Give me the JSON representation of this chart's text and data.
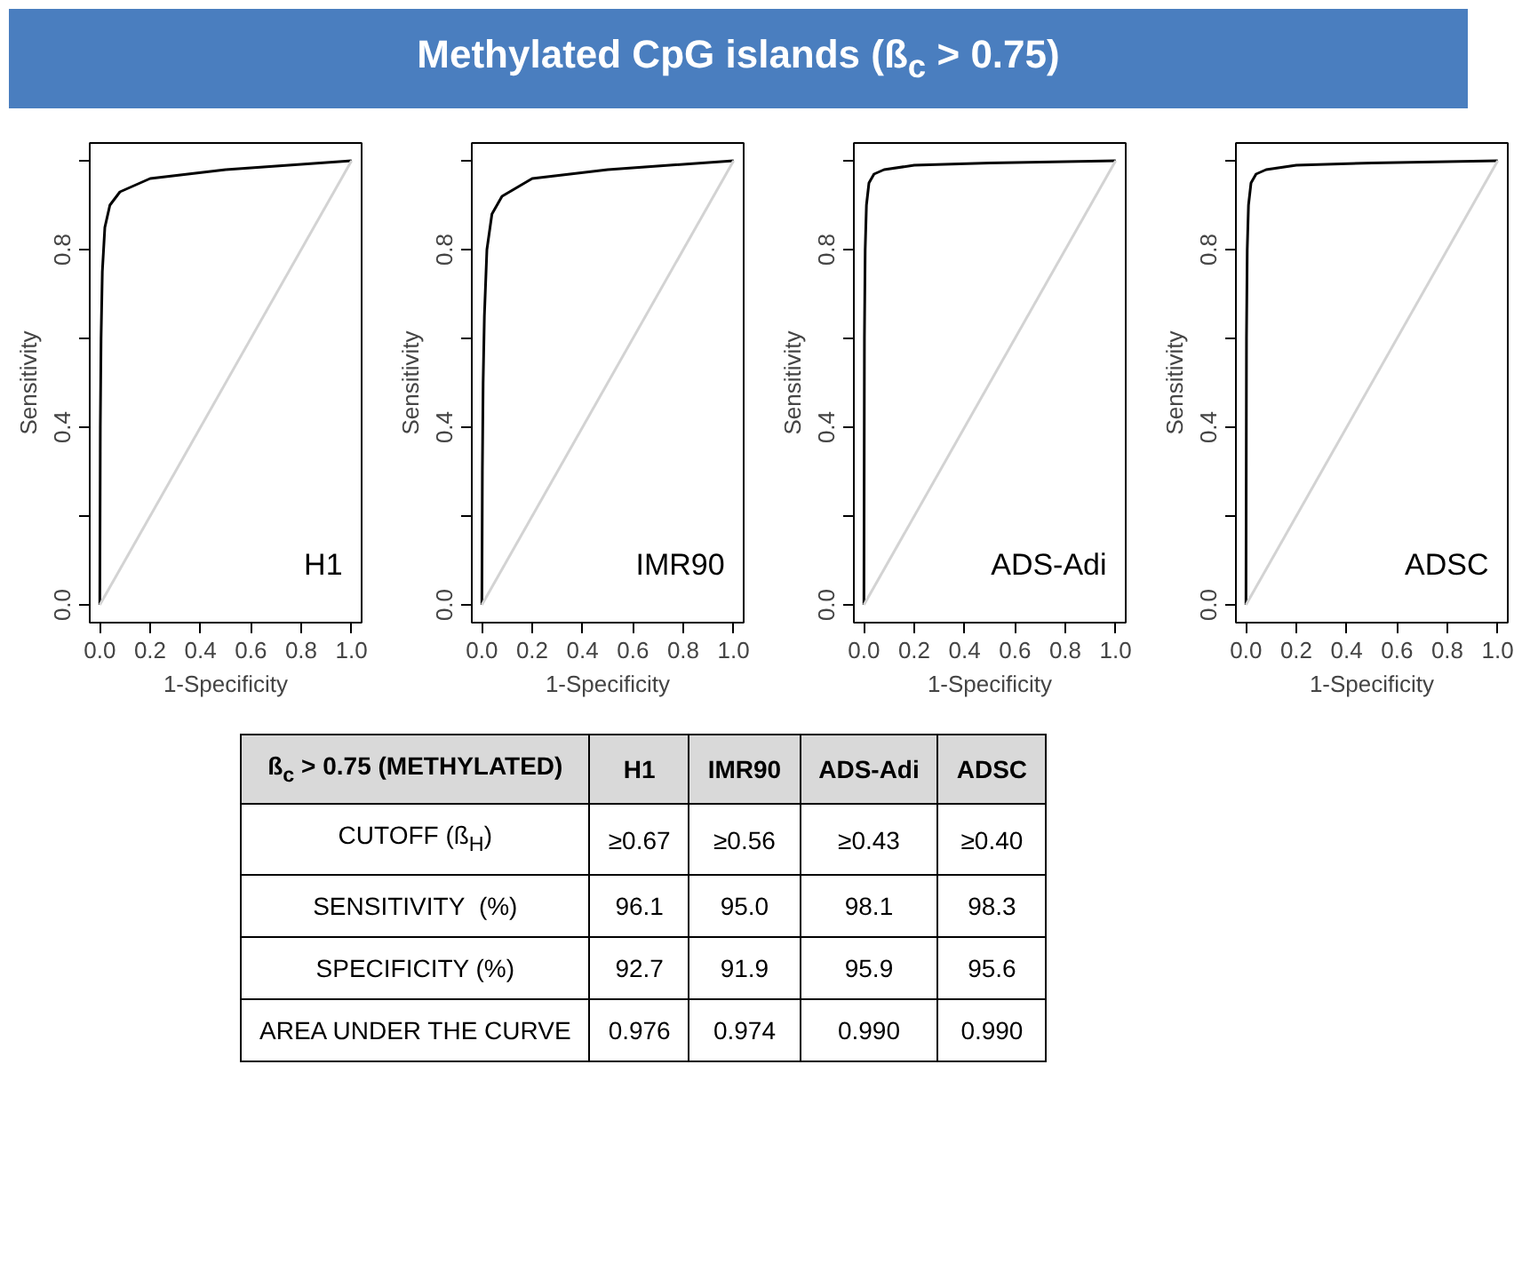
{
  "chart_data": [
    {
      "type": "other",
      "title": "Methylated CpG islands (ß$_{c}$ > 0.75)"
    },
    {
      "type": "line",
      "xlabel": "1-Specificity",
      "ylabel": "Sensitivity",
      "xlim": [
        -0.04,
        1.04
      ],
      "ylim": [
        -0.04,
        1.04
      ],
      "xticks": [
        {
          "value": 0,
          "label": "0.0"
        },
        {
          "value": 0.2,
          "label": "0.2"
        },
        {
          "value": 0.4,
          "label": "0.4"
        },
        {
          "value": 0.6,
          "label": "0.6"
        },
        {
          "value": 0.8,
          "label": "0.8"
        },
        {
          "value": 1,
          "label": "1.0"
        }
      ],
      "yticks": [
        {
          "value": 0,
          "label": "0.0"
        },
        {
          "value": 0.2,
          "label": null
        },
        {
          "value": 0.4,
          "label": "0.4"
        },
        {
          "value": 0.6,
          "label": null
        },
        {
          "value": 0.8,
          "label": "0.8"
        },
        {
          "value": 1,
          "label": null
        }
      ],
      "series": [
        {
          "name": "H1",
          "color": "#000000",
          "x": [
            0,
            0.002,
            0.005,
            0.01,
            0.02,
            0.04,
            0.08,
            0.2,
            0.5,
            1
          ],
          "values": [
            0,
            0.4,
            0.6,
            0.75,
            0.85,
            0.9,
            0.93,
            0.96,
            0.98,
            1
          ]
        },
        {
          "color": "#d3d3d3",
          "x": [
            0,
            1
          ],
          "values": [
            0,
            1
          ]
        }
      ]
    },
    {
      "type": "line",
      "xlabel": "1-Specificity",
      "ylabel": "Sensitivity",
      "xlim": [
        -0.04,
        1.04
      ],
      "ylim": [
        -0.04,
        1.04
      ],
      "xticks": [
        {
          "value": 0,
          "label": "0.0"
        },
        {
          "value": 0.2,
          "label": "0.2"
        },
        {
          "value": 0.4,
          "label": "0.4"
        },
        {
          "value": 0.6,
          "label": "0.6"
        },
        {
          "value": 0.8,
          "label": "0.8"
        },
        {
          "value": 1,
          "label": "1.0"
        }
      ],
      "yticks": [
        {
          "value": 0,
          "label": "0.0"
        },
        {
          "value": 0.2,
          "label": null
        },
        {
          "value": 0.4,
          "label": "0.4"
        },
        {
          "value": 0.6,
          "label": null
        },
        {
          "value": 0.8,
          "label": "0.8"
        },
        {
          "value": 1,
          "label": null
        }
      ],
      "series": [
        {
          "name": "IMR90",
          "color": "#000000",
          "x": [
            0,
            0.002,
            0.005,
            0.01,
            0.02,
            0.04,
            0.08,
            0.2,
            0.5,
            1
          ],
          "values": [
            0,
            0.3,
            0.5,
            0.65,
            0.8,
            0.88,
            0.92,
            0.96,
            0.98,
            1
          ]
        },
        {
          "color": "#d3d3d3",
          "x": [
            0,
            1
          ],
          "values": [
            0,
            1
          ]
        }
      ]
    },
    {
      "type": "line",
      "xlabel": "1-Specificity",
      "ylabel": "Sensitivity",
      "xlim": [
        -0.04,
        1.04
      ],
      "ylim": [
        -0.04,
        1.04
      ],
      "xticks": [
        {
          "value": 0,
          "label": "0.0"
        },
        {
          "value": 0.2,
          "label": "0.2"
        },
        {
          "value": 0.4,
          "label": "0.4"
        },
        {
          "value": 0.6,
          "label": "0.6"
        },
        {
          "value": 0.8,
          "label": "0.8"
        },
        {
          "value": 1,
          "label": "1.0"
        }
      ],
      "yticks": [
        {
          "value": 0,
          "label": "0.0"
        },
        {
          "value": 0.2,
          "label": null
        },
        {
          "value": 0.4,
          "label": "0.4"
        },
        {
          "value": 0.6,
          "label": null
        },
        {
          "value": 0.8,
          "label": "0.8"
        },
        {
          "value": 1,
          "label": null
        }
      ],
      "series": [
        {
          "name": "ADS-Adi",
          "color": "#000000",
          "x": [
            0,
            0.002,
            0.005,
            0.01,
            0.02,
            0.04,
            0.08,
            0.2,
            0.5,
            1
          ],
          "values": [
            0,
            0.6,
            0.8,
            0.9,
            0.95,
            0.97,
            0.98,
            0.99,
            0.995,
            1
          ]
        },
        {
          "color": "#d3d3d3",
          "x": [
            0,
            1
          ],
          "values": [
            0,
            1
          ]
        }
      ]
    },
    {
      "type": "line",
      "xlabel": "1-Specificity",
      "ylabel": "Sensitivity",
      "xlim": [
        -0.04,
        1.04
      ],
      "ylim": [
        -0.04,
        1.04
      ],
      "xticks": [
        {
          "value": 0,
          "label": "0.0"
        },
        {
          "value": 0.2,
          "label": "0.2"
        },
        {
          "value": 0.4,
          "label": "0.4"
        },
        {
          "value": 0.6,
          "label": "0.6"
        },
        {
          "value": 0.8,
          "label": "0.8"
        },
        {
          "value": 1,
          "label": "1.0"
        }
      ],
      "yticks": [
        {
          "value": 0,
          "label": "0.0"
        },
        {
          "value": 0.2,
          "label": null
        },
        {
          "value": 0.4,
          "label": "0.4"
        },
        {
          "value": 0.6,
          "label": null
        },
        {
          "value": 0.8,
          "label": "0.8"
        },
        {
          "value": 1,
          "label": null
        }
      ],
      "series": [
        {
          "name": "ADSC",
          "color": "#000000",
          "x": [
            0,
            0.002,
            0.005,
            0.01,
            0.02,
            0.04,
            0.08,
            0.2,
            0.5,
            1
          ],
          "values": [
            0,
            0.6,
            0.8,
            0.9,
            0.95,
            0.97,
            0.98,
            0.99,
            0.995,
            1
          ]
        },
        {
          "color": "#d3d3d3",
          "x": [
            0,
            1
          ],
          "values": [
            0,
            1
          ]
        }
      ]
    },
    {
      "type": "other",
      "title": "ß$_{c}$ > 0.75 (METHYLATED)",
      "categories": [
        "H1",
        "IMR90",
        "ADS-Adi",
        "ADSC"
      ],
      "series": [
        {
          "name": "CUTOFF (ß$_{H}$)",
          "values": [
            0.67,
            0.56,
            0.43,
            0.4
          ],
          "value_labels": [
            "≥0.67",
            "≥0.56",
            "≥0.43",
            "≥0.40"
          ]
        },
        {
          "name": "SENSITIVITY  (%)",
          "values": [
            96.1,
            95.0,
            98.1,
            98.3
          ],
          "value_labels": [
            "96.1",
            "95.0",
            "98.1",
            "98.3"
          ]
        },
        {
          "name": "SPECIFICITY (%)",
          "values": [
            92.7,
            91.9,
            95.9,
            95.6
          ],
          "value_labels": [
            "92.7",
            "91.9",
            "95.9",
            "95.6"
          ]
        },
        {
          "name": "AREA UNDER THE CURVE",
          "values": [
            0.976,
            0.974,
            0.99,
            0.99
          ],
          "value_labels": [
            "0.976",
            "0.974",
            "0.990",
            "0.990"
          ]
        }
      ]
    }
  ]
}
